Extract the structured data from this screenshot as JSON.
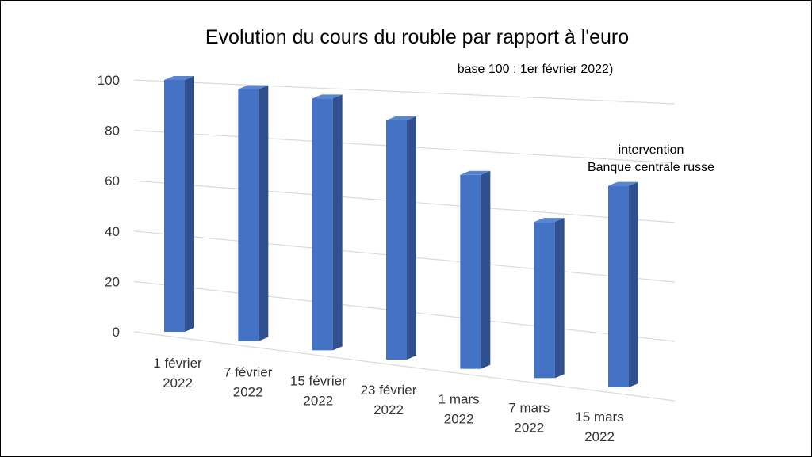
{
  "chart_data": {
    "type": "bar",
    "title": "Evolution du cours du rouble par rapport à l'euro",
    "subtitle": "base 100 : 1er février 2022)",
    "categories": [
      [
        "1 février",
        "2022"
      ],
      [
        "7 février",
        "2022"
      ],
      [
        "15 février",
        "2022"
      ],
      [
        "23 février",
        "2022"
      ],
      [
        "1 mars",
        "2022"
      ],
      [
        "7 mars",
        "2022"
      ],
      [
        "15 mars",
        "2022"
      ]
    ],
    "values": [
      100,
      100,
      100,
      95,
      77,
      62,
      80
    ],
    "ylim": [
      0,
      100
    ],
    "yticks": [
      0,
      20,
      40,
      60,
      80,
      100
    ],
    "grid": true,
    "annotation": {
      "lines": [
        "intervention",
        "Banque centrale russe"
      ],
      "category_index": 6
    },
    "colors": {
      "bar_front": "#4472C4",
      "bar_side": "#2F4F8F",
      "bar_top": "#5A86D0",
      "grid": "#D9D9D9"
    }
  }
}
